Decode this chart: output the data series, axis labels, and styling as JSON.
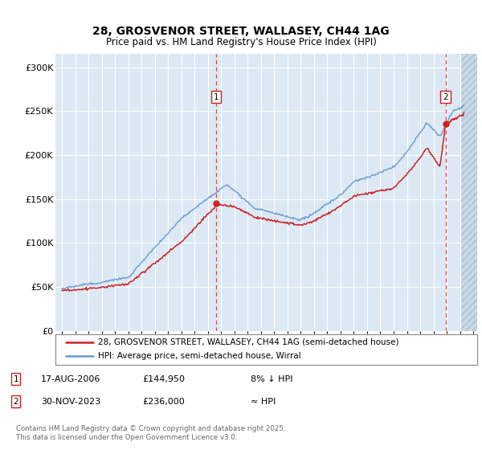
{
  "title": "28, GROSVENOR STREET, WALLASEY, CH44 1AG",
  "subtitle": "Price paid vs. HM Land Registry's House Price Index (HPI)",
  "background_color": "#ffffff",
  "plot_bg_color": "#dce9f5",
  "grid_color": "#ffffff",
  "sale1_date": "17-AUG-2006",
  "sale1_price": 144950,
  "sale1_label": "8% ↓ HPI",
  "sale2_date": "30-NOV-2023",
  "sale2_price": 236000,
  "sale2_label": "≈ HPI",
  "sale1_year": 2006.63,
  "sale2_year": 2023.92,
  "legend_line1": "28, GROSVENOR STREET, WALLASEY, CH44 1AG (semi-detached house)",
  "legend_line2": "HPI: Average price, semi-detached house, Wirral",
  "footer": "Contains HM Land Registry data © Crown copyright and database right 2025.\nThis data is licensed under the Open Government Licence v3.0.",
  "ylabel_ticks": [
    "£0",
    "£50K",
    "£100K",
    "£150K",
    "£200K",
    "£250K",
    "£300K"
  ],
  "ylabel_values": [
    0,
    50000,
    100000,
    150000,
    200000,
    250000,
    300000
  ],
  "xmin": 1994.5,
  "xmax": 2026.3,
  "ymin": 0,
  "ymax": 315000,
  "red_color": "#cc2222",
  "blue_color": "#6699cc",
  "hatch_start": 2025.1
}
